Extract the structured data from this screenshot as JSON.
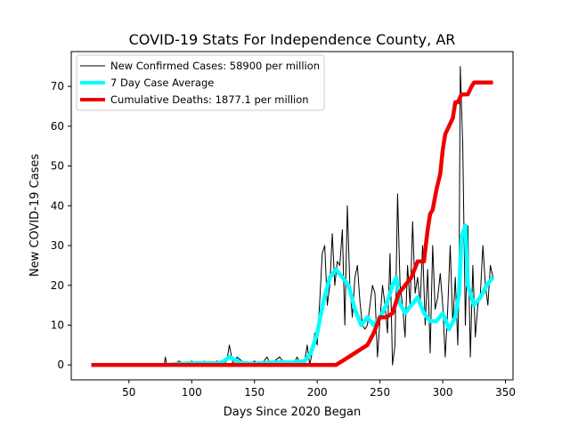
{
  "chart_data": {
    "type": "line",
    "title": "COVID-19 Stats For Independence County, AR",
    "xlabel": "Days Since 2020 Began",
    "ylabel": "New COVID-19 Cases",
    "xlim": [
      4,
      356
    ],
    "ylim": [
      -3.75,
      78.75
    ],
    "xticks": [
      50,
      100,
      150,
      200,
      250,
      300,
      350
    ],
    "yticks": [
      0,
      10,
      20,
      30,
      40,
      50,
      60,
      70
    ],
    "grid": false,
    "legend_position": "top-left",
    "series": [
      {
        "name": "New Confirmed Cases: 58900 per million",
        "color": "#000000",
        "x": [
          20,
          78,
          79,
          80,
          85,
          90,
          95,
          100,
          105,
          108,
          110,
          115,
          120,
          125,
          128,
          130,
          133,
          136,
          140,
          145,
          150,
          155,
          160,
          163,
          166,
          170,
          175,
          178,
          181,
          184,
          187,
          190,
          192,
          194,
          196,
          198,
          200,
          202,
          204,
          206,
          208,
          210,
          212,
          214,
          216,
          218,
          220,
          222,
          224,
          226,
          228,
          230,
          232,
          234,
          236,
          238,
          240,
          242,
          244,
          246,
          248,
          250,
          252,
          254,
          256,
          258,
          260,
          262,
          264,
          266,
          268,
          270,
          272,
          274,
          276,
          278,
          280,
          282,
          284,
          286,
          288,
          290,
          292,
          294,
          296,
          298,
          300,
          302,
          304,
          306,
          308,
          310,
          312,
          313,
          314,
          316,
          318,
          320,
          322,
          324,
          326,
          328,
          330,
          332,
          334,
          336,
          338,
          340
        ],
        "y": [
          0,
          0,
          2,
          0,
          0,
          1,
          0,
          1,
          0,
          0,
          1,
          0,
          1,
          0,
          1,
          5,
          0,
          2,
          1,
          0,
          1,
          0,
          2,
          0,
          1,
          2,
          0,
          1,
          0,
          2,
          0,
          1,
          5,
          0,
          3,
          8,
          5,
          16,
          28,
          30,
          15,
          20,
          33,
          20,
          26,
          25,
          34,
          10,
          40,
          20,
          12,
          22,
          25,
          16,
          10,
          9,
          10,
          15,
          20,
          18,
          2,
          11,
          20,
          15,
          8,
          28,
          0,
          5,
          43,
          20,
          15,
          7,
          25,
          15,
          36,
          18,
          22,
          15,
          30,
          10,
          24,
          3,
          30,
          14,
          17,
          23,
          15,
          2,
          14,
          30,
          10,
          22,
          5,
          20,
          75,
          55,
          10,
          35,
          2,
          25,
          7,
          15,
          18,
          30,
          20,
          15,
          25,
          22
        ]
      },
      {
        "name": "7 Day Case Average",
        "color": "#00ffff",
        "x": [
          80,
          90,
          100,
          110,
          120,
          125,
          130,
          135,
          140,
          150,
          160,
          170,
          180,
          190,
          195,
          200,
          205,
          210,
          215,
          220,
          225,
          230,
          235,
          240,
          245,
          250,
          255,
          260,
          263,
          265,
          270,
          275,
          280,
          285,
          290,
          295,
          300,
          305,
          310,
          313,
          315,
          318,
          320,
          325,
          330,
          335,
          340
        ],
        "y": [
          0,
          0.3,
          0.4,
          0.5,
          0.4,
          0.8,
          2,
          1.2,
          0.5,
          0.3,
          0.6,
          0.7,
          0.6,
          1,
          3,
          8,
          16,
          22,
          24,
          22,
          20,
          14,
          10,
          12,
          10,
          12,
          15,
          20,
          22,
          16,
          13,
          15,
          17,
          13,
          11,
          11,
          13,
          9,
          12,
          18,
          32,
          35,
          20,
          15,
          17,
          20,
          22
        ]
      },
      {
        "name": "Cumulative Deaths: 1877.1 per million",
        "color": "#ee0000",
        "x": [
          20,
          215,
          220,
          225,
          230,
          235,
          240,
          245,
          250,
          255,
          260,
          265,
          270,
          275,
          280,
          285,
          288,
          290,
          292,
          295,
          298,
          300,
          302,
          305,
          308,
          310,
          312,
          315,
          318,
          320,
          323,
          325,
          330,
          335,
          340
        ],
        "y": [
          0,
          0,
          1,
          2,
          3,
          4,
          5,
          8,
          12,
          12,
          13,
          18,
          20,
          22,
          26,
          26,
          34,
          38,
          39,
          44,
          48,
          54,
          58,
          60,
          62,
          66,
          66,
          68,
          68,
          68,
          70,
          71,
          71,
          71,
          71
        ]
      }
    ]
  }
}
